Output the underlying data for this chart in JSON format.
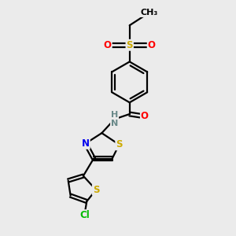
{
  "bg_color": "#ebebeb",
  "atom_colors": {
    "C": "#000000",
    "N": "#0000ee",
    "O": "#ff0000",
    "S": "#ccaa00",
    "Cl": "#00bb00",
    "H": "#6a8a8a"
  },
  "bond_color": "#000000",
  "bond_width": 1.6,
  "font_size": 8.5
}
